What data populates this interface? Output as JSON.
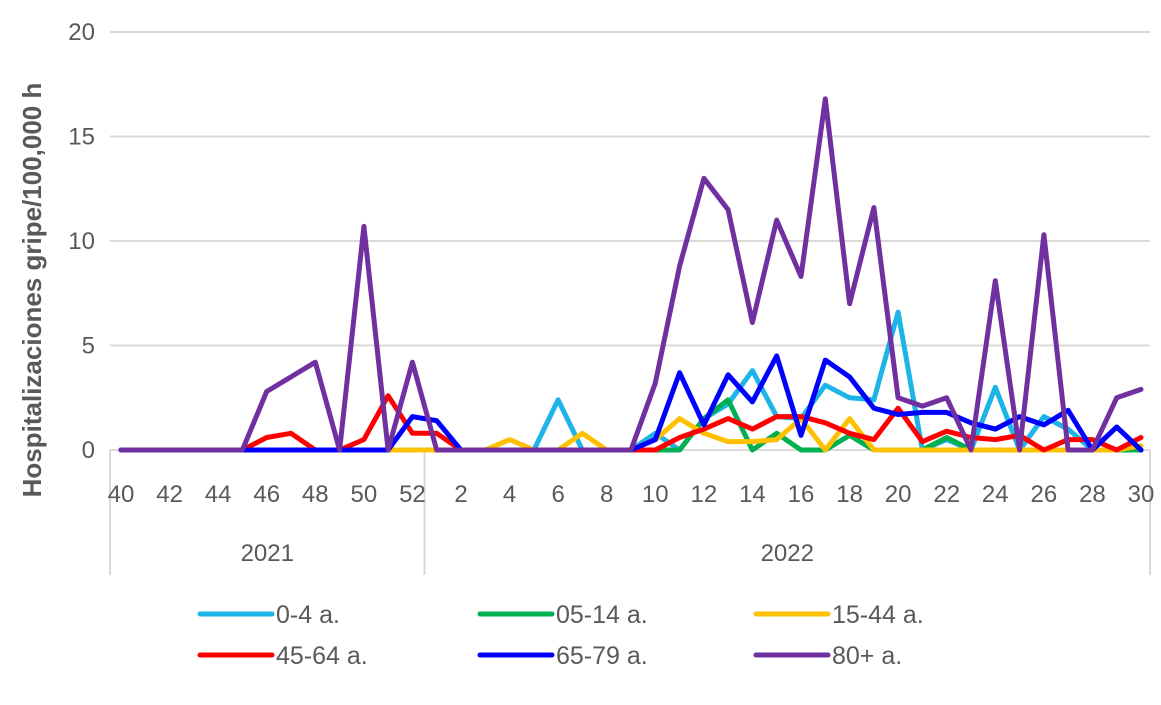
{
  "chart_data": {
    "type": "line",
    "ylabel": "Hospitalizaciones gripe/100,000 h",
    "ylim": [
      0,
      20
    ],
    "yticks": [
      0,
      5,
      10,
      15,
      20
    ],
    "grid": true,
    "legend_position": "bottom",
    "year_groups": [
      {
        "label": "2021",
        "weeks": [
          40,
          52
        ]
      },
      {
        "label": "2022",
        "weeks": [
          1,
          30
        ]
      }
    ],
    "x": [
      "40",
      "41",
      "42",
      "43",
      "44",
      "45",
      "46",
      "47",
      "48",
      "49",
      "50",
      "51",
      "52",
      "1",
      "2",
      "3",
      "4",
      "5",
      "6",
      "7",
      "8",
      "9",
      "10",
      "11",
      "12",
      "13",
      "14",
      "15",
      "16",
      "17",
      "18",
      "19",
      "20",
      "21",
      "22",
      "23",
      "24",
      "25",
      "26",
      "27",
      "28",
      "29",
      "30"
    ],
    "x_tick_labels": [
      "40",
      "42",
      "44",
      "46",
      "48",
      "50",
      "52",
      "2",
      "4",
      "6",
      "8",
      "10",
      "12",
      "14",
      "16",
      "18",
      "20",
      "22",
      "24",
      "26",
      "28",
      "30"
    ],
    "series": [
      {
        "name": "0-4 a.",
        "color": "#1fb4e8",
        "values": [
          0,
          0,
          0,
          0,
          0,
          0,
          0,
          0,
          0,
          0,
          0,
          0,
          0,
          0,
          0,
          0,
          0,
          0,
          2.4,
          0,
          0,
          0,
          0.8,
          0,
          1.5,
          2.2,
          3.8,
          1.6,
          1.5,
          3.1,
          2.5,
          2.4,
          6.6,
          0,
          0.5,
          0,
          3,
          0,
          1.6,
          1,
          0,
          0,
          0
        ]
      },
      {
        "name": "05-14 a.",
        "color": "#00b050",
        "values": [
          0,
          0,
          0,
          0,
          0,
          0,
          0,
          0,
          0,
          0,
          0,
          0,
          0,
          0,
          0,
          0,
          0,
          0,
          0,
          0,
          0,
          0,
          0,
          0,
          1.5,
          2.4,
          0,
          0.8,
          0,
          0,
          0.7,
          0,
          0,
          0,
          0.6,
          0,
          0,
          0,
          0,
          0,
          0,
          0,
          0
        ]
      },
      {
        "name": "15-44 a.",
        "color": "#ffc000",
        "values": [
          0,
          0,
          0,
          0,
          0,
          0,
          0,
          0,
          0,
          0,
          0,
          0,
          0,
          0,
          0,
          0,
          0.5,
          0,
          0,
          0.8,
          0,
          0,
          0.5,
          1.5,
          0.8,
          0.4,
          0.4,
          0.5,
          1.5,
          0,
          1.5,
          0,
          0,
          0,
          0,
          0,
          0,
          0,
          0,
          0,
          0,
          0,
          0.2
        ]
      },
      {
        "name": "45-64 a.",
        "color": "#ff0000",
        "values": [
          0,
          0,
          0,
          0,
          0,
          0,
          0.6,
          0.8,
          0,
          0,
          0.5,
          2.6,
          0.8,
          0.8,
          0,
          0,
          0,
          0,
          0,
          0,
          0,
          0,
          0,
          0.6,
          1,
          1.5,
          1,
          1.6,
          1.6,
          1.3,
          0.8,
          0.5,
          2,
          0.4,
          0.9,
          0.6,
          0.5,
          0.7,
          0,
          0.5,
          0.5,
          0,
          0.6
        ]
      },
      {
        "name": "65-79 a.",
        "color": "#0000ff",
        "values": [
          0,
          0,
          0,
          0,
          0,
          0,
          0,
          0,
          0,
          0,
          0,
          0,
          1.6,
          1.4,
          0,
          0,
          0,
          0,
          0,
          0,
          0,
          0,
          0.5,
          3.7,
          1.2,
          3.6,
          2.3,
          4.5,
          0.7,
          4.3,
          3.5,
          2,
          1.7,
          1.8,
          1.8,
          1.3,
          1,
          1.6,
          1.2,
          1.9,
          0,
          1.1,
          0
        ]
      },
      {
        "name": "80+ a.",
        "color": "#7030a0",
        "values": [
          0,
          0,
          0,
          0,
          0,
          0,
          2.8,
          3.5,
          4.2,
          0,
          10.7,
          0,
          4.2,
          0,
          0,
          0,
          0,
          0,
          0,
          0,
          0,
          0,
          3.2,
          8.8,
          13,
          11.5,
          6.1,
          11,
          8.3,
          16.8,
          7,
          11.6,
          2.5,
          2.1,
          2.5,
          0,
          8.1,
          0,
          10.3,
          0,
          0,
          2.5,
          2.9
        ]
      }
    ]
  }
}
